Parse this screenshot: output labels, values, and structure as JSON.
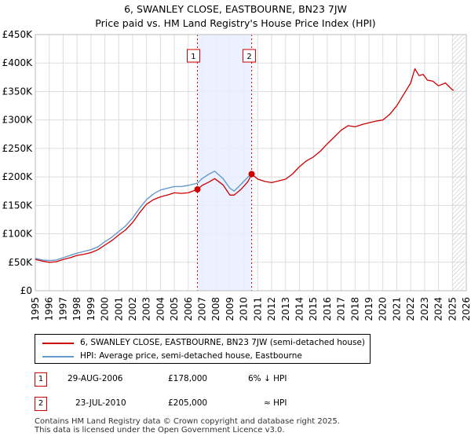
{
  "header": {
    "title": "6, SWANLEY CLOSE, EASTBOURNE, BN23 7JW",
    "subtitle": "Price paid vs. HM Land Registry's House Price Index (HPI)"
  },
  "legend": {
    "property_label": "6, SWANLEY CLOSE, EASTBOURNE, BN23 7JW (semi-detached house)",
    "hpi_label": "HPI: Average price, semi-detached house, Eastbourne"
  },
  "sales": [
    {
      "badge": "1",
      "date": "29-AUG-2006",
      "price": "£178,000",
      "relation": "6% ↓ HPI"
    },
    {
      "badge": "2",
      "date": "23-JUL-2010",
      "price": "£205,000",
      "relation": "≈ HPI"
    }
  ],
  "footer": {
    "line1": "Contains HM Land Registry data © Crown copyright and database right 2025.",
    "line2": "This data is licensed under the Open Government Licence v3.0."
  },
  "colors": {
    "property": "#cc0000",
    "hpi": "#6699cc",
    "shade": "#e8eeff",
    "grid": "#dddddd"
  },
  "chart_data": {
    "type": "line",
    "title": "6, SWANLEY CLOSE, EASTBOURNE, BN23 7JW",
    "subtitle": "Price paid vs. HM Land Registry's House Price Index (HPI)",
    "xlabel": "",
    "ylabel": "",
    "xlim": [
      1995,
      2026
    ],
    "ylim": [
      0,
      450000
    ],
    "grid": true,
    "x_ticks": [
      1995,
      1996,
      1997,
      1998,
      1999,
      2000,
      2001,
      2002,
      2003,
      2004,
      2005,
      2006,
      2007,
      2008,
      2009,
      2010,
      2011,
      2012,
      2013,
      2014,
      2015,
      2016,
      2017,
      2018,
      2019,
      2020,
      2021,
      2022,
      2023,
      2024,
      2025,
      2026
    ],
    "y_ticks": [
      {
        "value": 0,
        "label": "£0"
      },
      {
        "value": 50000,
        "label": "£50K"
      },
      {
        "value": 100000,
        "label": "£100K"
      },
      {
        "value": 150000,
        "label": "£150K"
      },
      {
        "value": 200000,
        "label": "£200K"
      },
      {
        "value": 250000,
        "label": "£250K"
      },
      {
        "value": 300000,
        "label": "£300K"
      },
      {
        "value": 350000,
        "label": "£350K"
      },
      {
        "value": 400000,
        "label": "£400K"
      },
      {
        "value": 450000,
        "label": "£450K"
      }
    ],
    "shaded_span": [
      2006.66,
      2010.56
    ],
    "future_hatch_from": 2025.0,
    "series": [
      {
        "name": "6, SWANLEY CLOSE, EASTBOURNE, BN23 7JW (semi-detached house)",
        "color": "#cc0000",
        "x": [
          1995,
          1995.5,
          1996,
          1996.5,
          1997,
          1997.5,
          1998,
          1998.5,
          1999,
          1999.5,
          2000,
          2000.5,
          2001,
          2001.5,
          2002,
          2002.5,
          2003,
          2003.5,
          2004,
          2004.5,
          2005,
          2005.5,
          2006,
          2006.66,
          2007,
          2007.5,
          2007.9,
          2008.5,
          2009,
          2009.3,
          2009.8,
          2010.3,
          2010.56,
          2011,
          2011.5,
          2012,
          2012.5,
          2013,
          2013.5,
          2014,
          2014.5,
          2015,
          2015.5,
          2016,
          2016.5,
          2017,
          2017.5,
          2018,
          2018.5,
          2019,
          2019.5,
          2020,
          2020.5,
          2021,
          2021.5,
          2022,
          2022.3,
          2022.6,
          2022.9,
          2023.2,
          2023.6,
          2024,
          2024.5,
          2025,
          2025.1
        ],
        "y": [
          55000,
          52000,
          50000,
          51000,
          55000,
          58000,
          62000,
          64000,
          67000,
          72000,
          80000,
          88000,
          98000,
          107000,
          120000,
          137000,
          152000,
          160000,
          165000,
          168000,
          172000,
          171000,
          172000,
          178000,
          185000,
          191000,
          197000,
          186000,
          168000,
          168000,
          178000,
          192000,
          205000,
          196000,
          192000,
          190000,
          193000,
          196000,
          205000,
          218000,
          228000,
          235000,
          245000,
          258000,
          270000,
          282000,
          290000,
          288000,
          292000,
          295000,
          298000,
          300000,
          310000,
          325000,
          345000,
          365000,
          390000,
          378000,
          380000,
          370000,
          368000,
          360000,
          365000,
          353000,
          352000
        ]
      },
      {
        "name": "HPI: Average price, semi-detached house, Eastbourne",
        "color": "#6699cc",
        "x": [
          1995,
          1995.5,
          1996,
          1996.5,
          1997,
          1997.5,
          1998,
          1998.5,
          1999,
          1999.5,
          2000,
          2000.5,
          2001,
          2001.5,
          2002,
          2002.5,
          2003,
          2003.5,
          2004,
          2004.5,
          2005,
          2005.5,
          2006,
          2006.66,
          2007,
          2007.5,
          2007.9,
          2008.5,
          2009,
          2009.3,
          2009.8,
          2010.3,
          2010.56
        ],
        "y": [
          57000,
          54000,
          53000,
          54000,
          58000,
          62000,
          66000,
          69000,
          72000,
          77000,
          86000,
          94000,
          104000,
          114000,
          128000,
          145000,
          160000,
          170000,
          177000,
          180000,
          183000,
          183000,
          185000,
          189000,
          197000,
          205000,
          210000,
          197000,
          180000,
          175000,
          187000,
          200000,
          205000
        ]
      }
    ],
    "sales": [
      {
        "label": "1",
        "x": 2006.66,
        "y": 178000
      },
      {
        "label": "2",
        "x": 2010.56,
        "y": 205000
      }
    ]
  }
}
